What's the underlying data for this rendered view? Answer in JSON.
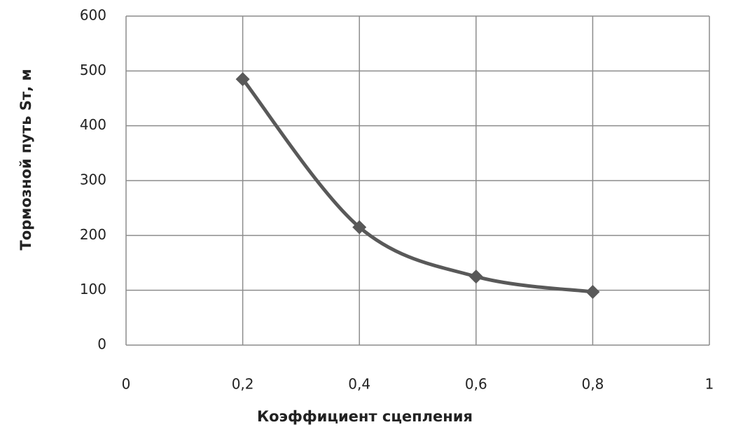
{
  "chart_data": {
    "type": "line",
    "x_label": "Коэффициент сцепления",
    "y_label": "Тормозной путь Sт, м",
    "x": [
      0.2,
      0.4,
      0.6,
      0.8
    ],
    "series": [
      {
        "color": "#595959",
        "values": [
          485,
          215,
          125,
          97
        ]
      }
    ],
    "smooth": true,
    "marker": "diamond",
    "xlim": [
      0,
      1
    ],
    "xticks": [
      0,
      {
        "value": 0.2,
        "label": "0,2"
      },
      {
        "value": 0.4,
        "label": "0,4"
      },
      {
        "value": 0.6,
        "label": "0,6"
      },
      {
        "value": 0.8,
        "label": "0,8"
      },
      1
    ],
    "ylim": [
      0,
      600
    ],
    "yticks": [
      0,
      100,
      200,
      300,
      400,
      500,
      600
    ],
    "grid": true
  }
}
